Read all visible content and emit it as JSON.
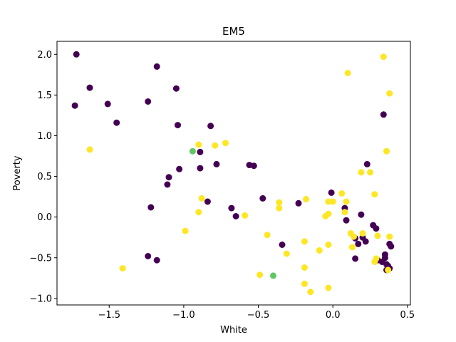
{
  "chart_data": {
    "type": "scatter",
    "title": "EM5",
    "xlabel": "White",
    "ylabel": "Poverty",
    "xlim": [
      -1.85,
      0.52
    ],
    "ylim": [
      -1.08,
      2.16
    ],
    "xticks": [
      -1.5,
      -1.0,
      -0.5,
      0.0,
      0.5
    ],
    "xtick_labels": [
      "−1.5",
      "−1.0",
      "−0.5",
      "0.0",
      "0.5"
    ],
    "yticks": [
      -1.0,
      -0.5,
      0.0,
      0.5,
      1.0,
      1.5,
      2.0
    ],
    "ytick_labels": [
      "−1.0",
      "−0.5",
      "0.0",
      "0.5",
      "1.0",
      "1.5",
      "2.0"
    ],
    "grid": false,
    "series": [
      {
        "color": "#440154",
        "points": [
          [
            -1.72,
            2.0
          ],
          [
            -1.73,
            1.37
          ],
          [
            -1.63,
            1.59
          ],
          [
            -1.51,
            1.39
          ],
          [
            -1.45,
            1.16
          ],
          [
            -1.24,
            1.42
          ],
          [
            -1.18,
            1.85
          ],
          [
            -1.05,
            1.58
          ],
          [
            -1.04,
            1.13
          ],
          [
            -0.82,
            1.12
          ],
          [
            -1.03,
            0.59
          ],
          [
            -1.1,
            0.49
          ],
          [
            -1.11,
            0.4
          ],
          [
            -0.89,
            0.8
          ],
          [
            -0.89,
            0.6
          ],
          [
            -0.78,
            0.65
          ],
          [
            -0.56,
            0.64
          ],
          [
            -0.53,
            0.63
          ],
          [
            -1.22,
            0.12
          ],
          [
            -0.84,
            0.19
          ],
          [
            -0.68,
            0.11
          ],
          [
            -0.65,
            0.01
          ],
          [
            -0.47,
            0.23
          ],
          [
            -0.23,
            0.17
          ],
          [
            -0.01,
            0.3
          ],
          [
            -1.24,
            -0.48
          ],
          [
            -1.18,
            -0.53
          ],
          [
            -0.34,
            -0.34
          ],
          [
            0.08,
            0.11
          ],
          [
            0.09,
            -0.04
          ],
          [
            0.19,
            0.03
          ],
          [
            0.23,
            0.65
          ],
          [
            0.34,
            1.26
          ],
          [
            0.15,
            -0.26
          ],
          [
            0.17,
            -0.33
          ],
          [
            0.2,
            -0.25
          ],
          [
            0.22,
            -0.3
          ],
          [
            0.15,
            -0.51
          ],
          [
            0.27,
            -0.1
          ],
          [
            0.29,
            -0.14
          ],
          [
            0.3,
            -0.53
          ],
          [
            0.33,
            -0.55
          ],
          [
            0.35,
            -0.46
          ],
          [
            0.35,
            -0.5
          ],
          [
            0.36,
            -0.58
          ],
          [
            0.37,
            -0.6
          ],
          [
            0.38,
            -0.63
          ],
          [
            0.36,
            -0.65
          ],
          [
            0.38,
            -0.33
          ],
          [
            0.39,
            -0.36
          ]
        ]
      },
      {
        "color": "#5ec962",
        "points": [
          [
            -0.94,
            0.81
          ],
          [
            -0.4,
            -0.72
          ]
        ]
      },
      {
        "color": "#fde725",
        "points": [
          [
            -1.63,
            0.83
          ],
          [
            -1.41,
            -0.63
          ],
          [
            -0.99,
            -0.17
          ],
          [
            -0.9,
            0.89
          ],
          [
            -0.79,
            0.88
          ],
          [
            -0.72,
            0.91
          ],
          [
            -0.88,
            0.23
          ],
          [
            -0.9,
            0.06
          ],
          [
            -0.59,
            0.02
          ],
          [
            -0.49,
            -0.71
          ],
          [
            -0.44,
            -0.22
          ],
          [
            -0.36,
            0.18
          ],
          [
            -0.36,
            0.11
          ],
          [
            -0.31,
            -0.45
          ],
          [
            -0.19,
            -0.3
          ],
          [
            -0.18,
            0.22
          ],
          [
            -0.09,
            -0.41
          ],
          [
            -0.19,
            -0.62
          ],
          [
            -0.19,
            -0.82
          ],
          [
            -0.15,
            -0.92
          ],
          [
            -0.05,
            0.01
          ],
          [
            -0.03,
            0.04
          ],
          [
            -0.03,
            0.19
          ],
          [
            0.0,
            0.19
          ],
          [
            -0.03,
            -0.34
          ],
          [
            -0.03,
            -0.87
          ],
          [
            0.06,
            0.29
          ],
          [
            0.09,
            0.19
          ],
          [
            0.08,
            0.06
          ],
          [
            0.1,
            1.77
          ],
          [
            0.12,
            -0.2
          ],
          [
            0.13,
            -0.37
          ],
          [
            0.14,
            -0.24
          ],
          [
            0.19,
            0.55
          ],
          [
            0.25,
            0.55
          ],
          [
            0.28,
            0.28
          ],
          [
            0.3,
            -0.23
          ],
          [
            0.34,
            1.97
          ],
          [
            0.36,
            0.81
          ],
          [
            0.38,
            1.52
          ],
          [
            0.38,
            -0.24
          ],
          [
            0.29,
            -0.51
          ],
          [
            0.28,
            -0.55
          ],
          [
            0.37,
            -0.65
          ],
          [
            0.2,
            -0.2
          ]
        ]
      }
    ]
  }
}
